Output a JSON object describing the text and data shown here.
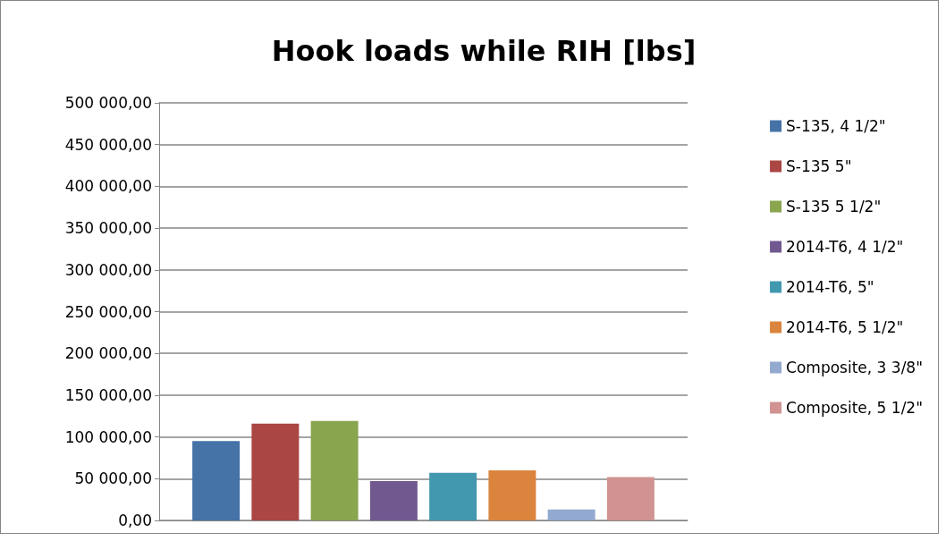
{
  "chart_data": {
    "type": "bar",
    "title": "Hook loads while RIH [lbs]",
    "categories": [
      null
    ],
    "series": [
      {
        "name": "S-135, 4 1/2\"",
        "color": "#4572a7",
        "values": [
          95000
        ]
      },
      {
        "name": "S-135 5\"",
        "color": "#aa4643",
        "values": [
          116000
        ]
      },
      {
        "name": "S-135 5 1/2\"",
        "color": "#89a54e",
        "values": [
          119000
        ]
      },
      {
        "name": "2014-T6, 4 1/2\"",
        "color": "#71588f",
        "values": [
          47000
        ]
      },
      {
        "name": "2014-T6, 5\"",
        "color": "#4198af",
        "values": [
          57000
        ]
      },
      {
        "name": "2014-T6, 5 1/2\"",
        "color": "#db843d",
        "values": [
          60000
        ]
      },
      {
        "name": "Composite, 3 3/8\"",
        "color": "#93a9cf",
        "values": [
          13000
        ]
      },
      {
        "name": "Composite, 5 1/2\"",
        "color": "#d19392",
        "values": [
          52000
        ]
      }
    ],
    "ylim": [
      0,
      500000
    ],
    "yticks": [
      {
        "value": 0,
        "label": "0,00"
      },
      {
        "value": 50000,
        "label": "50 000,00"
      },
      {
        "value": 100000,
        "label": "100 000,00"
      },
      {
        "value": 150000,
        "label": "150 000,00"
      },
      {
        "value": 200000,
        "label": "200 000,00"
      },
      {
        "value": 250000,
        "label": "250 000,00"
      },
      {
        "value": 300000,
        "label": "300 000,00"
      },
      {
        "value": 350000,
        "label": "350 000,00"
      },
      {
        "value": 400000,
        "label": "400 000,00"
      },
      {
        "value": 450000,
        "label": "450 000,00"
      },
      {
        "value": 500000,
        "label": "500 000,00"
      }
    ],
    "grid": "y",
    "legend": "right"
  }
}
